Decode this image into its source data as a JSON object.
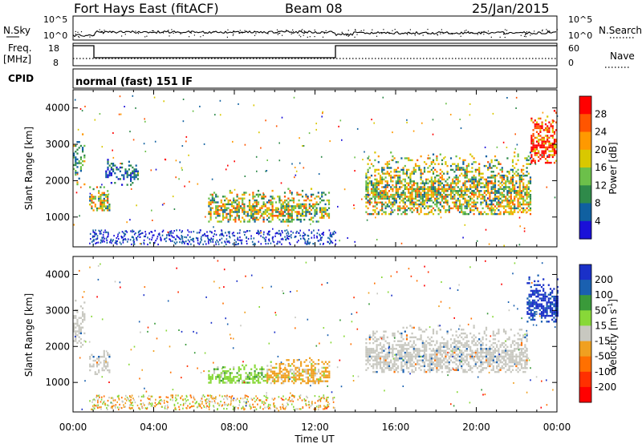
{
  "header": {
    "station": "Fort Hays East (fitACF)",
    "beam": "Beam 08",
    "date": "25/Jan/2015"
  },
  "strip": {
    "nsky_label": "N.Sky",
    "nsky_ticks": [
      "10^5",
      "10^0"
    ],
    "nsearch_label": "N.Search",
    "nsearch_ticks": [
      "10^5",
      "10^0"
    ],
    "freq_label": "Freq.",
    "freq_unit": "[MHz]",
    "freq_ticks": [
      "18",
      "8"
    ],
    "nave_label": "Nave",
    "nave_ticks": [
      "60",
      "0"
    ],
    "cpid_label": "CPID",
    "cpid_text": "normal (fast) 151 IF"
  },
  "chart_data": [
    {
      "type": "heatmap",
      "title": "",
      "xlabel": "Time UT",
      "ylabel": "Slant Range [km]",
      "xlim_hours": [
        0,
        24
      ],
      "ylim_km": [
        180,
        4500
      ],
      "x_ticks": [
        "00:00",
        "04:00",
        "08:00",
        "12:00",
        "16:00",
        "20:00",
        "00:00"
      ],
      "y_ticks": [
        1000,
        2000,
        3000,
        4000
      ],
      "colorbar": {
        "label": "Power [dB]",
        "ticks": [
          "28",
          "24",
          "20",
          "16",
          "12",
          "8",
          "4"
        ],
        "colors": [
          "#ff0000",
          "#ff5500",
          "#ff9900",
          "#d9c800",
          "#6cc04a",
          "#2f8a4a",
          "#1060a0",
          "#1a10d8"
        ]
      },
      "echo_regions": [
        {
          "t": [
            0.0,
            0.55
          ],
          "r": [
            1900,
            3300
          ],
          "level": "mixed"
        },
        {
          "t": [
            0.8,
            1.8
          ],
          "r": [
            1200,
            1900
          ],
          "level": "high"
        },
        {
          "t": [
            1.6,
            3.2
          ],
          "r": [
            1900,
            2600
          ],
          "level": "low"
        },
        {
          "t": [
            6.7,
            12.7
          ],
          "r": [
            900,
            1800
          ],
          "level": "high"
        },
        {
          "t": [
            14.5,
            22.7
          ],
          "r": [
            1100,
            2800
          ],
          "level": "high"
        },
        {
          "t": [
            22.7,
            24.0
          ],
          "r": [
            2500,
            4000
          ],
          "level": "very-high"
        }
      ]
    },
    {
      "type": "heatmap",
      "title": "",
      "xlabel": "Time UT",
      "ylabel": "Slant Range [km]",
      "xlim_hours": [
        0,
        24
      ],
      "ylim_km": [
        180,
        4500
      ],
      "x_ticks": [
        "00:00",
        "04:00",
        "08:00",
        "12:00",
        "16:00",
        "20:00",
        "00:00"
      ],
      "y_ticks": [
        1000,
        2000,
        3000,
        4000
      ],
      "colorbar": {
        "label": "Velocity [m s",
        "label_exponent": "-1",
        "ticks": [
          "200",
          "100",
          "50",
          "15",
          "-15",
          "-50",
          "-100",
          "-200"
        ],
        "colors": [
          "#1a30c8",
          "#1a60b0",
          "#3a9a3a",
          "#88d838",
          "#c8c8c0",
          "#f0a020",
          "#ff7000",
          "#ff3000",
          "#ff0000"
        ]
      },
      "echo_regions": [
        {
          "t": [
            0.0,
            0.55
          ],
          "r": [
            1900,
            3300
          ],
          "level": "ground-scatter"
        },
        {
          "t": [
            0.8,
            1.8
          ],
          "r": [
            1200,
            1900
          ],
          "level": "ground-scatter"
        },
        {
          "t": [
            6.7,
            9.6
          ],
          "r": [
            1000,
            1500
          ],
          "level": "+15 to +50"
        },
        {
          "t": [
            9.6,
            12.7
          ],
          "r": [
            1000,
            1700
          ],
          "level": "-15 to -50"
        },
        {
          "t": [
            14.5,
            22.5
          ],
          "r": [
            1300,
            2600
          ],
          "level": "ground-scatter"
        },
        {
          "t": [
            22.5,
            24.0
          ],
          "r": [
            2700,
            4000
          ],
          "level": "+100 to +200"
        }
      ]
    }
  ]
}
